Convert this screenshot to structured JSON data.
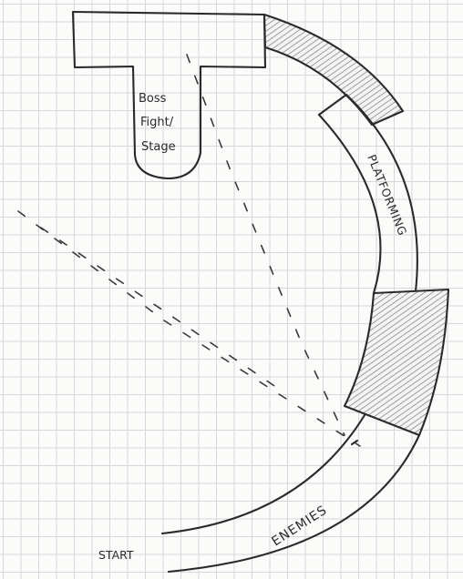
{
  "labels": {
    "boss_line1": "Boss",
    "boss_line2": "Fight/",
    "boss_line3": "Stage",
    "platforming": "PLATFORMING",
    "enemies": "ENEMIES",
    "start": "START"
  },
  "colors": {
    "ink": "#2a2a2a",
    "grid": "#d6d8d8",
    "paper": "#fbfbfa",
    "hatch": "#7a7a7a"
  }
}
